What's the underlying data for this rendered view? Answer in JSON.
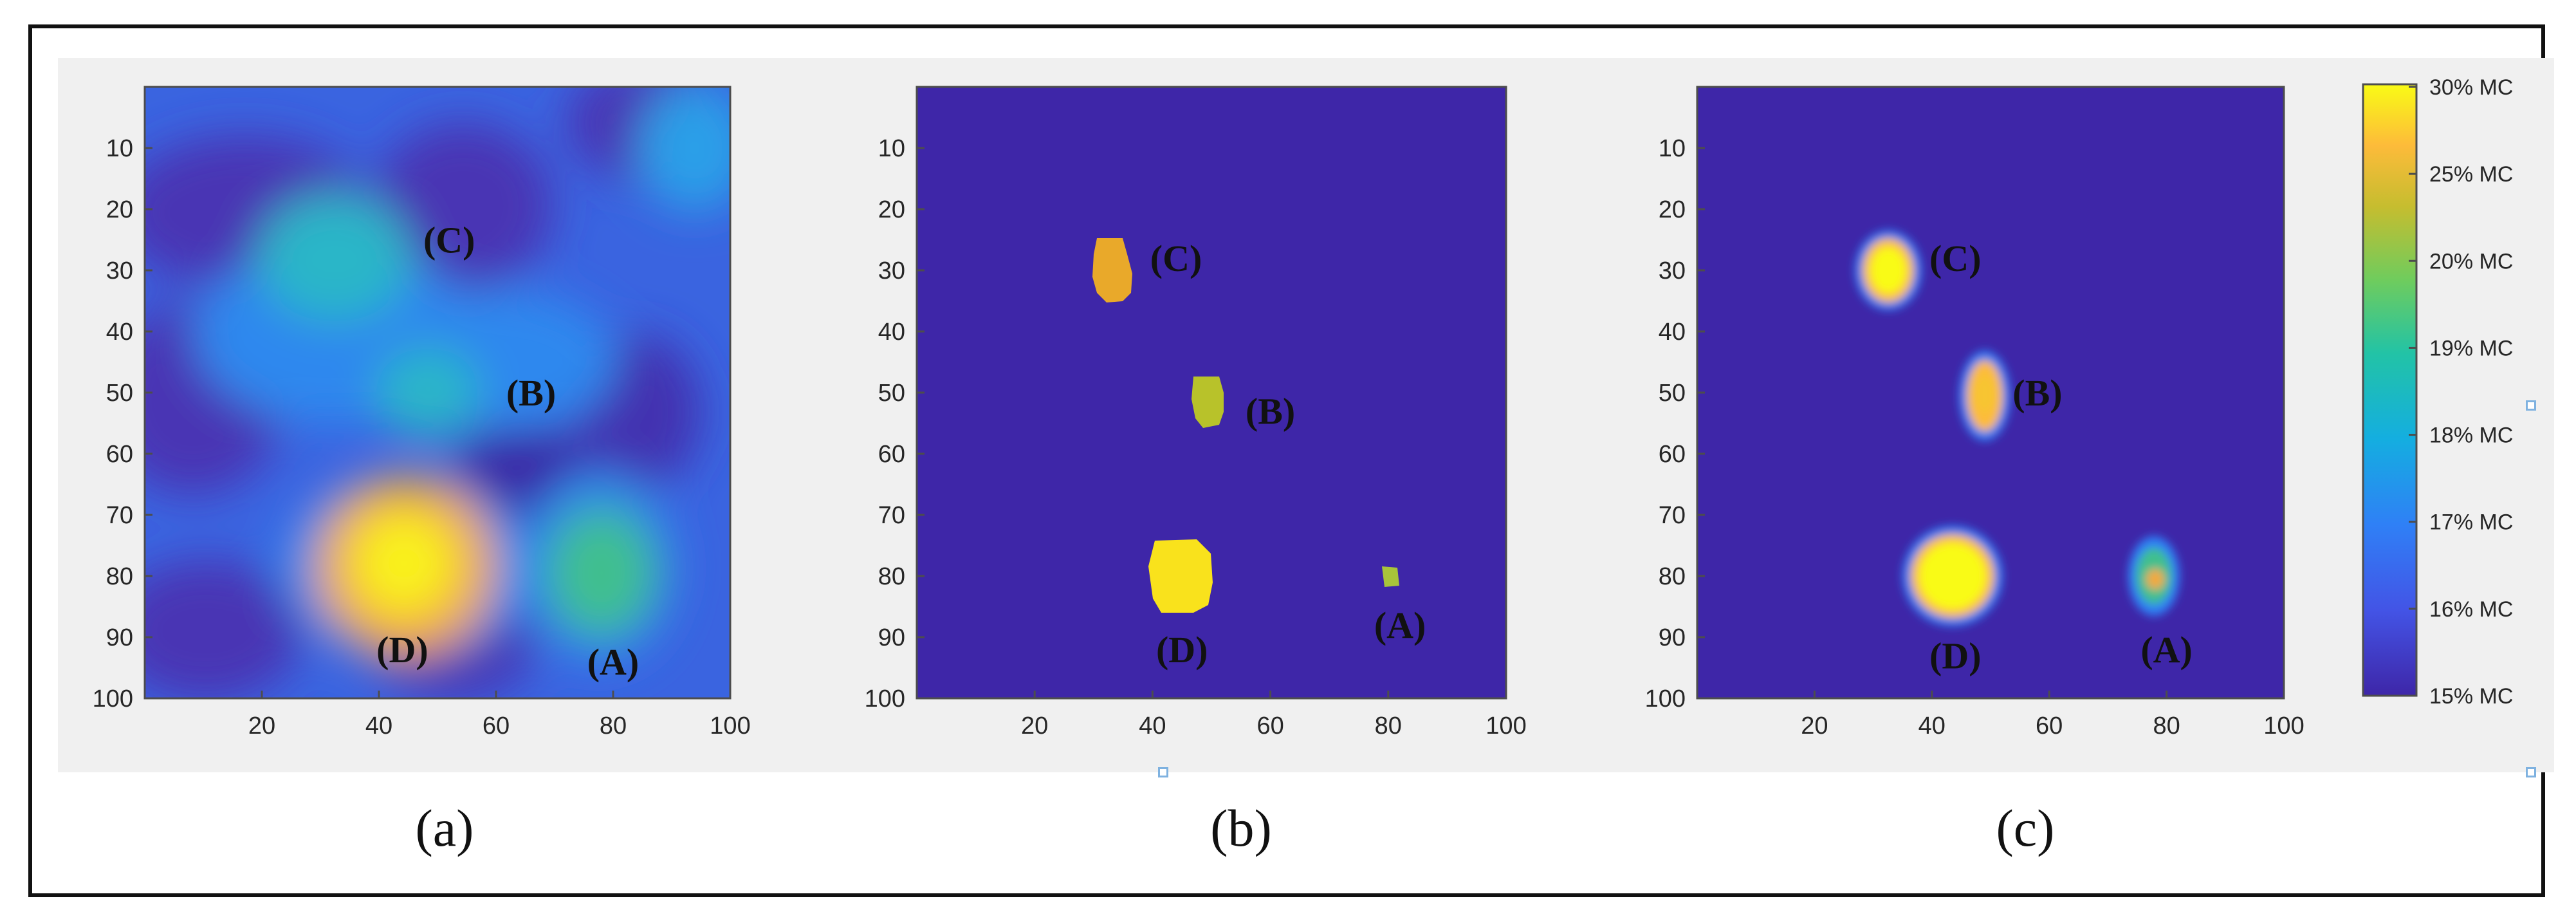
{
  "colors": {
    "low": "#3e26a8",
    "high": "#f9fb15",
    "stops": [
      "#3e26a8",
      "#4354e6",
      "#2f80f6",
      "#14aee0",
      "#22c3a6",
      "#6fcc5d",
      "#c6bd2f",
      "#fdbb3a",
      "#f9fb15"
    ]
  },
  "colorbar": {
    "labels": [
      "30% MC",
      "25% MC",
      "20% MC",
      "19% MC",
      "18% MC",
      "17% MC",
      "16% MC",
      "15% MC"
    ]
  },
  "chart_data": [
    {
      "type": "heatmap",
      "panel": "a",
      "caption": "(a)",
      "xlim": [
        0,
        100
      ],
      "ylim": [
        0,
        100
      ],
      "x_ticks": [
        20,
        40,
        60,
        80,
        100
      ],
      "y_ticks": [
        10,
        20,
        30,
        40,
        50,
        60,
        70,
        80,
        90,
        100
      ],
      "annotations": [
        {
          "text": "(C)",
          "x": 52,
          "y": 25
        },
        {
          "text": "(B)",
          "x": 66,
          "y": 50
        },
        {
          "text": "(D)",
          "x": 44,
          "y": 92
        },
        {
          "text": "(A)",
          "x": 80,
          "y": 94
        }
      ]
    },
    {
      "type": "heatmap",
      "panel": "b",
      "caption": "(b)",
      "xlim": [
        0,
        100
      ],
      "ylim": [
        0,
        100
      ],
      "x_ticks": [
        20,
        40,
        60,
        80,
        100
      ],
      "y_ticks": [
        10,
        20,
        30,
        40,
        50,
        60,
        70,
        80,
        90,
        100
      ],
      "annotations": [
        {
          "text": "(C)",
          "x": 44,
          "y": 28
        },
        {
          "text": "(B)",
          "x": 60,
          "y": 53
        },
        {
          "text": "(D)",
          "x": 45,
          "y": 92
        },
        {
          "text": "(A)",
          "x": 82,
          "y": 88
        }
      ]
    },
    {
      "type": "heatmap",
      "panel": "c",
      "caption": "(c)",
      "xlim": [
        0,
        100
      ],
      "ylim": [
        0,
        100
      ],
      "x_ticks": [
        20,
        40,
        60,
        80,
        100
      ],
      "y_ticks": [
        10,
        20,
        30,
        40,
        50,
        60,
        70,
        80,
        90,
        100
      ],
      "annotations": [
        {
          "text": "(C)",
          "x": 44,
          "y": 28
        },
        {
          "text": "(B)",
          "x": 58,
          "y": 50
        },
        {
          "text": "(D)",
          "x": 44,
          "y": 93
        },
        {
          "text": "(A)",
          "x": 80,
          "y": 92
        }
      ]
    }
  ]
}
